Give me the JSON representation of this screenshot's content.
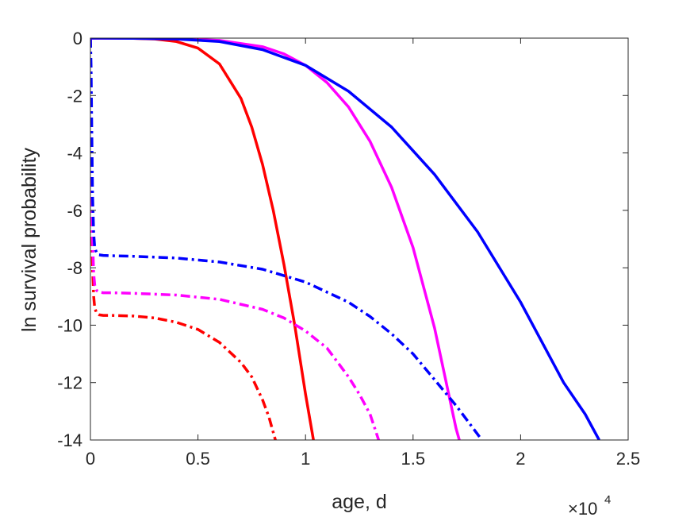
{
  "chart_data": {
    "type": "line",
    "title": "",
    "xlabel": "age, d",
    "ylabel": "ln survival probability",
    "x_multiplier": "×10",
    "x_multiplier_exponent": "4",
    "xlim": [
      0,
      25000
    ],
    "ylim": [
      -14,
      0
    ],
    "x_ticks": [
      0,
      5000,
      10000,
      15000,
      20000,
      25000
    ],
    "x_tick_labels": [
      "0",
      "0.5",
      "1",
      "1.5",
      "2",
      "2.5"
    ],
    "y_ticks": [
      0,
      -2,
      -4,
      -6,
      -8,
      -10,
      -12,
      -14
    ],
    "y_tick_labels": [
      "0",
      "-2",
      "-4",
      "-6",
      "-8",
      "-10",
      "-12",
      "-14"
    ],
    "grid": false,
    "legend": "none",
    "series": [
      {
        "color": "#ff0000",
        "style": "solid",
        "x": [
          0,
          1000,
          2000,
          3000,
          4000,
          5000,
          6000,
          7000,
          7500,
          8000,
          8500,
          9000,
          9500,
          10000,
          10370
        ],
        "y": [
          0,
          -0.001,
          -0.005,
          -0.03,
          -0.12,
          -0.35,
          -0.9,
          -2.1,
          -3.1,
          -4.4,
          -6.0,
          -7.9,
          -10.0,
          -12.4,
          -14
        ]
      },
      {
        "color": "#ff00ff",
        "style": "solid",
        "x": [
          0,
          2000,
          4000,
          6000,
          8000,
          9000,
          10000,
          11000,
          12000,
          13000,
          14000,
          15000,
          16000,
          17000,
          17150
        ],
        "y": [
          0,
          -0.002,
          -0.02,
          -0.08,
          -0.3,
          -0.55,
          -0.95,
          -1.55,
          -2.4,
          -3.6,
          -5.2,
          -7.3,
          -10.1,
          -13.6,
          -14
        ]
      },
      {
        "color": "#0000ff",
        "style": "solid",
        "x": [
          0,
          2000,
          4000,
          6000,
          8000,
          10000,
          12000,
          14000,
          16000,
          18000,
          20000,
          21000,
          22000,
          23000,
          23650
        ],
        "y": [
          0,
          -0.005,
          -0.03,
          -0.12,
          -0.4,
          -0.95,
          -1.85,
          -3.1,
          -4.75,
          -6.75,
          -9.2,
          -10.6,
          -12.0,
          -13.1,
          -14
        ]
      },
      {
        "color": "#ff0000",
        "style": "dashdot",
        "x": [
          0,
          30,
          60,
          100,
          150,
          200,
          300,
          400,
          600,
          1000,
          2000,
          3000,
          4000,
          5000,
          6000,
          7000,
          7500,
          8000,
          8300,
          8600
        ],
        "y": [
          0,
          -3.0,
          -6.0,
          -8.0,
          -9.0,
          -9.4,
          -9.6,
          -9.64,
          -9.66,
          -9.66,
          -9.68,
          -9.75,
          -9.9,
          -10.15,
          -10.6,
          -11.3,
          -11.8,
          -12.6,
          -13.2,
          -14
        ]
      },
      {
        "color": "#ff00ff",
        "style": "dashdot",
        "x": [
          0,
          30,
          60,
          100,
          150,
          200,
          300,
          400,
          600,
          1000,
          2000,
          4000,
          6000,
          8000,
          9000,
          10000,
          11000,
          12000,
          12500,
          13000,
          13400
        ],
        "y": [
          0,
          -2.5,
          -5.0,
          -7.0,
          -8.2,
          -8.6,
          -8.8,
          -8.85,
          -8.87,
          -8.87,
          -8.89,
          -8.95,
          -9.1,
          -9.45,
          -9.75,
          -10.2,
          -10.8,
          -11.8,
          -12.4,
          -13.1,
          -14
        ]
      },
      {
        "color": "#0000ff",
        "style": "dashdot",
        "x": [
          0,
          30,
          60,
          100,
          150,
          200,
          300,
          400,
          600,
          1000,
          2000,
          4000,
          6000,
          8000,
          10000,
          12000,
          13000,
          14000,
          15000,
          16000,
          17000,
          17500,
          18200
        ],
        "y": [
          0,
          -1.0,
          -3.0,
          -5.5,
          -6.8,
          -7.3,
          -7.5,
          -7.55,
          -7.57,
          -7.58,
          -7.6,
          -7.66,
          -7.8,
          -8.05,
          -8.5,
          -9.2,
          -9.7,
          -10.3,
          -11.0,
          -11.9,
          -12.8,
          -13.3,
          -14
        ]
      }
    ]
  }
}
